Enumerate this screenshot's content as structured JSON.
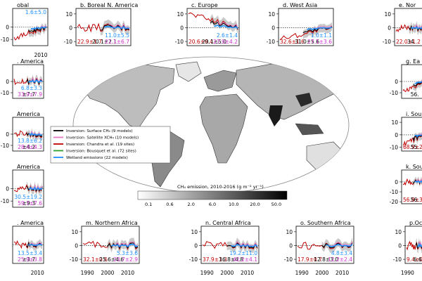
{
  "colors": {
    "surface": "#000000",
    "satellite": "#e377c2",
    "chandra": "#c00000",
    "bousquet": "#2ca02c",
    "wetland": "#1e90ff",
    "val_red": "#c00000",
    "val_black": "#000000",
    "val_blue": "#1e90ff",
    "val_magenta": "#cc33cc"
  },
  "map": {
    "colorbar_title": "CH₄ emission, 2010-2016 (g m⁻² yr⁻¹)",
    "colorbar_ticks": [
      "0.1",
      "0.6",
      "2.0",
      "6.0",
      "10.0",
      "20.0",
      "50.0"
    ],
    "legend": [
      {
        "label": "Inversion: Surface CH₄ (9 models)",
        "color_key": "surface"
      },
      {
        "label": "Inversion: Satellite XCH₄ (10 models)",
        "color_key": "satellite"
      },
      {
        "label": "Inversion: Chandra et al. (19 sites)",
        "color_key": "chandra"
      },
      {
        "label": "Inversion: Bousquet et al. (72 sites)",
        "color_key": "bousquet"
      },
      {
        "label": "Wetland emissions (22 models)",
        "color_key": "wetland"
      }
    ]
  },
  "chart_data": [
    {
      "id": "a",
      "type": "line",
      "title": "obal",
      "yticks": [
        "0",
        "-10"
      ],
      "yticks_pos": [
        0,
        -10
      ],
      "ylim": [
        -15,
        15
      ],
      "xticks": [
        "2010"
      ],
      "values": [
        {
          "text": "1.6±5.0",
          "color_key": "val_blue",
          "pos": "top"
        }
      ]
    },
    {
      "id": "b",
      "type": "line",
      "title": "b. Boreal N. America",
      "yticks": [
        "10",
        "0",
        "-10"
      ],
      "ylim": [
        -13,
        14
      ],
      "xticks": [],
      "values": [
        {
          "text": "22.9±1.7",
          "color_key": "val_red"
        },
        {
          "text": "20.1±2.1",
          "color_key": "val_black"
        },
        {
          "text": "11.0±5.5",
          "color_key": "val_blue"
        },
        {
          "text": "21.1±6.7",
          "color_key": "val_magenta"
        }
      ]
    },
    {
      "id": "c",
      "type": "line",
      "title": "c. Europe",
      "yticks": [
        "10",
        "0",
        "-10"
      ],
      "ylim": [
        -13,
        14
      ],
      "xticks": [],
      "values": [
        {
          "text": "20.6±0.4",
          "color_key": "val_red"
        },
        {
          "text": "29.1±5.0",
          "color_key": "val_black"
        },
        {
          "text": "2.6±1.4",
          "color_key": "val_blue"
        },
        {
          "text": "27.9±4.2",
          "color_key": "val_magenta"
        }
      ]
    },
    {
      "id": "d",
      "type": "line",
      "title": "d. West Asia",
      "yticks": [
        "10",
        "0",
        "-10"
      ],
      "ylim": [
        -13,
        14
      ],
      "xticks": [],
      "values": [
        {
          "text": "32.6±1.6",
          "color_key": "val_red"
        },
        {
          "text": "31.0±5.6",
          "color_key": "val_black"
        },
        {
          "text": "1.0±1.1",
          "color_key": "val_blue"
        },
        {
          "text": "27.1±3.6",
          "color_key": "val_magenta"
        }
      ]
    },
    {
      "id": "e",
      "type": "line",
      "title": "e. Nor",
      "yticks": [
        "10",
        "0",
        "-10"
      ],
      "ylim": [
        -13,
        14
      ],
      "xticks": [],
      "values": [
        {
          "text": "22.0±1.2",
          "color_key": "val_red"
        },
        {
          "text": "34.",
          "color_key": "val_black"
        }
      ]
    },
    {
      "id": "f",
      "type": "line",
      "title": ". America",
      "yticks": [
        "0",
        "-10"
      ],
      "yticks_pos": [
        0,
        -10
      ],
      "ylim": [
        -15,
        15
      ],
      "xticks": [],
      "values": [
        {
          "text": "6.8±3.3",
          "color_key": "val_blue"
        },
        {
          "text": "±7.7",
          "color_key": "val_black"
        },
        {
          "text": "33.9±7.9",
          "color_key": "val_magenta"
        }
      ]
    },
    {
      "id": "g",
      "type": "line",
      "title": "g. Ea",
      "yticks": [
        "0",
        "-10"
      ],
      "yticks_pos": [
        0,
        -10
      ],
      "ylim": [
        -15,
        15
      ],
      "xticks": [],
      "values": [
        {
          "text": "56.",
          "color_key": "val_black"
        }
      ]
    },
    {
      "id": "h",
      "type": "line",
      "title": "America",
      "yticks": [
        "0",
        "-10"
      ],
      "yticks_pos": [
        0,
        -10
      ],
      "ylim": [
        -15,
        15
      ],
      "xticks": [],
      "values": [
        {
          "text": "13.8±6.2",
          "color_key": "val_blue"
        },
        {
          "text": "±4.2",
          "color_key": "val_black"
        },
        {
          "text": "28.4±4.3",
          "color_key": "val_magenta"
        }
      ]
    },
    {
      "id": "i",
      "type": "line",
      "title": "i. Sou",
      "yticks": [
        "10",
        "0",
        "-10"
      ],
      "ylim": [
        -13,
        14
      ],
      "xticks": [],
      "values": [
        {
          "text": "68.9±2.5",
          "color_key": "val_red"
        },
        {
          "text": "55.",
          "color_key": "val_black"
        }
      ]
    },
    {
      "id": "j",
      "type": "line",
      "title": "America",
      "yticks": [
        "0",
        "-10"
      ],
      "yticks_pos": [
        0,
        -10
      ],
      "ylim": [
        -15,
        15
      ],
      "xticks": [],
      "values": [
        {
          "text": "30.5±19.2",
          "color_key": "val_blue"
        },
        {
          "text": "±9.3",
          "color_key": "val_black"
        },
        {
          "text": "59.7±7.6",
          "color_key": "val_magenta"
        }
      ]
    },
    {
      "id": "k",
      "type": "line",
      "title": "k. South",
      "yticks": [
        "0",
        "-10",
        "-20"
      ],
      "ylim": [
        -22,
        12
      ],
      "xticks": [],
      "values": [
        {
          "text": "56.8±3.8",
          "color_key": "val_red"
        },
        {
          "text": "56.",
          "color_key": "val_black"
        }
      ]
    },
    {
      "id": "l",
      "type": "line",
      "title": ". America",
      "yticks": [],
      "ylim": [
        -15,
        15
      ],
      "xticks": [
        "2010"
      ],
      "values": [
        {
          "text": "13.5±3.4",
          "color_key": "val_blue"
        },
        {
          "text": "±3.7",
          "color_key": "val_black"
        },
        {
          "text": "25.9±3.8",
          "color_key": "val_magenta"
        }
      ]
    },
    {
      "id": "m",
      "type": "line",
      "title": "m. Northern Africa",
      "yticks": [
        "10",
        "0",
        "-10"
      ],
      "ylim": [
        -13,
        14
      ],
      "xticks": [
        "1990",
        "2000",
        "2010"
      ],
      "values": [
        {
          "text": "32.1±0.6",
          "color_key": "val_red"
        },
        {
          "text": "25.6±4.6",
          "color_key": "val_black"
        },
        {
          "text": "5.3±3.6",
          "color_key": "val_blue"
        },
        {
          "text": "23.7±2.9",
          "color_key": "val_magenta"
        }
      ]
    },
    {
      "id": "n",
      "type": "line",
      "title": "n. Central Africa",
      "yticks": [
        "10",
        "0",
        "-10"
      ],
      "ylim": [
        -13,
        14
      ],
      "xticks": [
        "1990",
        "2000",
        "2010"
      ],
      "values": [
        {
          "text": "37.9±1.3",
          "color_key": "val_red"
        },
        {
          "text": "36.8±4.8",
          "color_key": "val_black"
        },
        {
          "text": "19.2±11.0",
          "color_key": "val_blue"
        },
        {
          "text": "42.2±4.1",
          "color_key": "val_magenta"
        }
      ]
    },
    {
      "id": "o",
      "type": "line",
      "title": "o. Southern Africa",
      "yticks": [
        "10",
        "0",
        "-10"
      ],
      "ylim": [
        -13,
        14
      ],
      "xticks": [
        "1990",
        "2000",
        "2010"
      ],
      "values": [
        {
          "text": "17.9±0.7",
          "color_key": "val_red"
        },
        {
          "text": "12.8±3.0",
          "color_key": "val_black"
        },
        {
          "text": "4.8±3.4",
          "color_key": "val_blue"
        },
        {
          "text": "12.2±2.4",
          "color_key": "val_magenta"
        }
      ]
    },
    {
      "id": "p",
      "type": "line",
      "title": "p.Oc",
      "yticks": [
        "10",
        "0",
        "-10"
      ],
      "ylim": [
        -13,
        14
      ],
      "xticks": [
        "1990"
      ],
      "values": [
        {
          "text": "9.4±0.4",
          "color_key": "val_red"
        },
        {
          "text": "6.6",
          "color_key": "val_black"
        }
      ]
    }
  ]
}
